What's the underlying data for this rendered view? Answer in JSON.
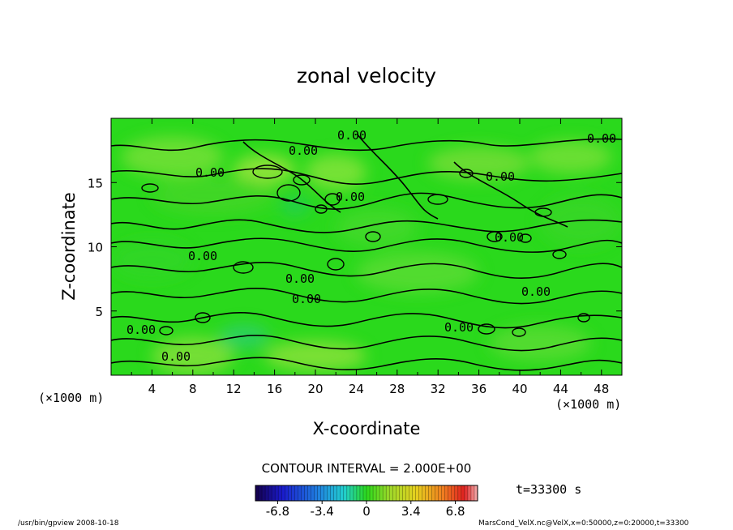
{
  "chart_data": {
    "type": "heatmap",
    "title": "zonal velocity",
    "xlabel": "X-coordinate",
    "ylabel": "Z-coordinate",
    "x_unit": "(×1000 m)",
    "y_unit": "(×1000 m)",
    "xlim": [
      0,
      50
    ],
    "ylim": [
      0,
      20
    ],
    "x_ticks": [
      4,
      8,
      12,
      16,
      20,
      24,
      28,
      32,
      36,
      40,
      44,
      48
    ],
    "y_ticks": [
      5,
      10,
      15
    ],
    "contour_interval_text": "CONTOUR INTERVAL = 2.000E+00",
    "contour_label": "0.00",
    "time_text": "t=33300 s",
    "colorbar": {
      "min": -8.5,
      "max": 8.5,
      "ticks": [
        "-6.8",
        "-3.4",
        "0",
        "3.4",
        "6.8"
      ],
      "tick_values": [
        -6.8,
        -3.4,
        0,
        3.4,
        6.8
      ]
    },
    "field_base_color": "#2ad91c",
    "contour_color": "#000000",
    "grid": false
  },
  "footer": {
    "left": "/usr/bin/gpview  2008-10-18",
    "right": "MarsCond_VelX.nc@VelX,x=0:50000,z=0:20000,t=33300"
  }
}
